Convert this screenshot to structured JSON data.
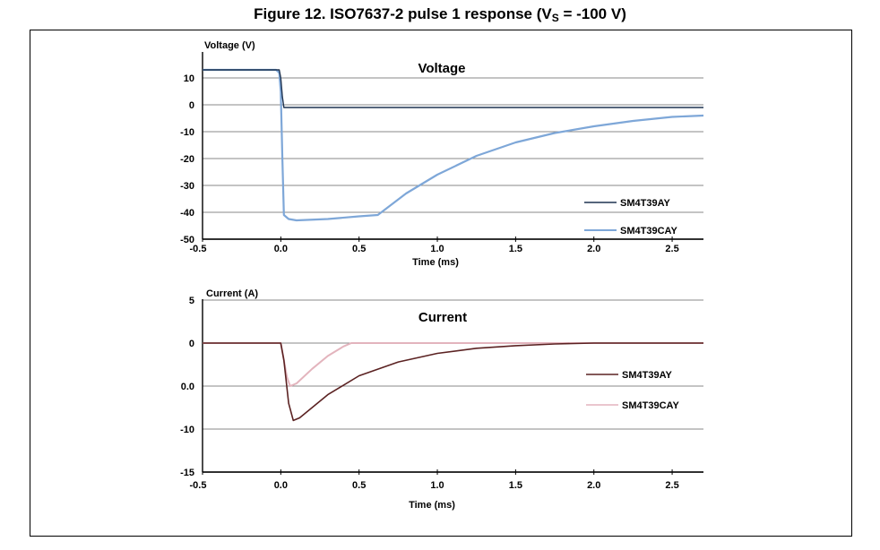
{
  "figure": {
    "title_main": "Figure 12. ISO7637-2 pulse 1 response (V",
    "title_sub": "S",
    "title_tail": " = -100 V)"
  },
  "colors": {
    "dark_navy": "#1f3350",
    "light_blue": "#7ea7d8",
    "dark_red": "#5b2222",
    "light_pink": "#e3b4bd",
    "grid": "#8a8a8a"
  },
  "chart_data": [
    {
      "type": "line",
      "title": "Voltage",
      "ylabel": "Voltage (V)",
      "xlabel": "Time (ms)",
      "xlim": [
        -0.5,
        2.7
      ],
      "ylim": [
        -50,
        18
      ],
      "grid": true,
      "legend_placement": "right",
      "x_ticks": [
        "-0.5",
        "0.0",
        "0.5",
        "1.0",
        "1.5",
        "2.0",
        "2.5"
      ],
      "y_ticks": [
        "10",
        "0",
        "-10",
        "-20",
        "-30",
        "-40",
        "-50"
      ],
      "series": [
        {
          "name": "SM4T39AY",
          "color": "#1f3350",
          "x": [
            -0.5,
            -0.03,
            -0.01,
            0.0,
            0.01,
            0.02,
            0.05,
            0.3,
            1.0,
            2.0,
            2.7
          ],
          "y": [
            13,
            13,
            13,
            10,
            3,
            -1,
            -1,
            -1,
            -1,
            -1,
            -1
          ]
        },
        {
          "name": "SM4T39CAY",
          "color": "#7ea7d8",
          "x": [
            -0.5,
            -0.03,
            -0.01,
            0.0,
            0.01,
            0.02,
            0.05,
            0.1,
            0.3,
            0.5,
            0.62,
            0.8,
            1.0,
            1.25,
            1.5,
            1.75,
            2.0,
            2.25,
            2.5,
            2.7
          ],
          "y": [
            13,
            13,
            12,
            5,
            -20,
            -41,
            -42.5,
            -43,
            -42.5,
            -41.5,
            -41,
            -33,
            -26,
            -19,
            -14,
            -10.5,
            -8,
            -6,
            -4.5,
            -4
          ]
        }
      ]
    },
    {
      "type": "line",
      "title": "Current",
      "ylabel": "Current (A)",
      "xlabel": "Time (ms)",
      "xlim": [
        -0.5,
        2.7
      ],
      "ylim": [
        -15,
        5
      ],
      "grid": true,
      "legend_placement": "right",
      "x_ticks": [
        "-0.5",
        "0.0",
        "0.5",
        "1.0",
        "1.5",
        "2.0",
        "2.5"
      ],
      "y_ticks": [
        "5",
        "0",
        "0.0",
        "-10",
        "-15"
      ],
      "series": [
        {
          "name": "SM4T39AY",
          "color": "#5b2222",
          "x": [
            -0.5,
            0.0,
            0.02,
            0.05,
            0.08,
            0.12,
            0.2,
            0.3,
            0.5,
            0.75,
            1.0,
            1.25,
            1.5,
            1.75,
            2.0,
            2.5,
            2.7
          ],
          "y": [
            0,
            0,
            -2,
            -7,
            -9,
            -8.7,
            -7.5,
            -6,
            -3.8,
            -2.2,
            -1.2,
            -0.6,
            -0.3,
            -0.1,
            0,
            0,
            0
          ]
        },
        {
          "name": "SM4T39CAY",
          "color": "#e3b4bd",
          "x": [
            -0.5,
            0.0,
            0.02,
            0.04,
            0.06,
            0.1,
            0.2,
            0.3,
            0.4,
            0.45,
            1.0,
            2.0,
            2.7
          ],
          "y": [
            0,
            0,
            -2,
            -4,
            -5,
            -4.7,
            -3,
            -1.5,
            -0.4,
            0,
            0,
            0,
            0
          ]
        }
      ]
    }
  ]
}
